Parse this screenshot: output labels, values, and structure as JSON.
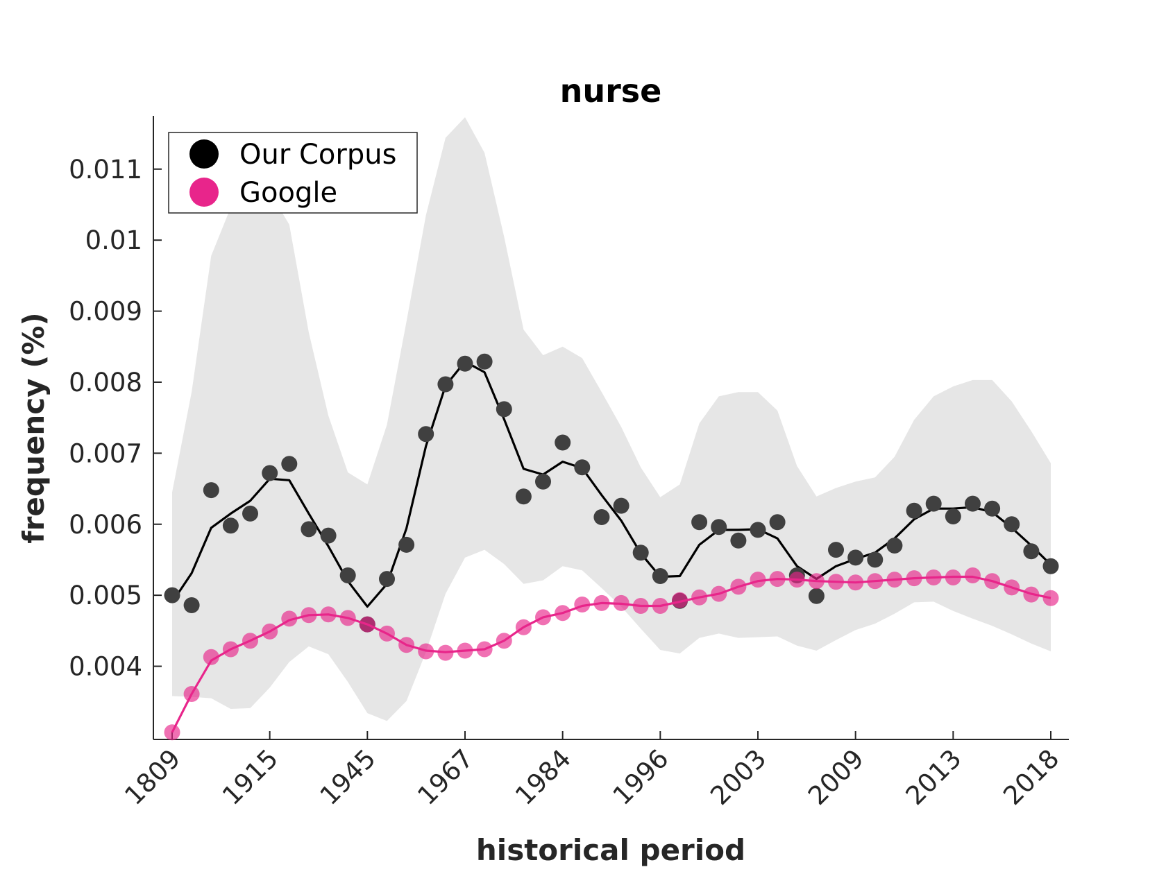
{
  "chart_data": {
    "type": "line",
    "title": "nurse",
    "xlabel": "historical period",
    "ylabel": "frequency (%)",
    "ylim": [
      0.00297,
      0.01175
    ],
    "yticks": [
      0.004,
      0.005,
      0.006,
      0.007,
      0.008,
      0.009,
      0.01,
      0.011
    ],
    "ytick_labels": [
      "0.004",
      "0.005",
      "0.006",
      "0.007",
      "0.008",
      "0.009",
      "0.01",
      "0.011"
    ],
    "xtick_labels": [
      "1809",
      "1915",
      "1945",
      "1967",
      "1984",
      "1996",
      "2003",
      "2009",
      "2013",
      "2018"
    ],
    "xtick_positions": [
      0,
      5,
      10,
      15,
      20,
      25,
      30,
      35,
      40,
      45
    ],
    "grid": false,
    "legend_position": "top-left",
    "series": [
      {
        "name": "Our Corpus",
        "color": "#000000",
        "marker_color": "#404040",
        "points": [
          0.005,
          0.00486,
          0.00648,
          0.00598,
          0.00615,
          0.00672,
          0.00685,
          0.00593,
          0.00584,
          0.00528,
          0.00459,
          0.00523,
          0.00571,
          0.00727,
          0.00797,
          0.00826,
          0.00829,
          0.00762,
          0.00639,
          0.0066,
          0.00715,
          0.0068,
          0.0061,
          0.00626,
          0.0056,
          0.00527,
          0.00492,
          0.00603,
          0.00596,
          0.00577,
          0.00592,
          0.00603,
          0.00528,
          0.00499,
          0.00564,
          0.00553,
          0.0055,
          0.0057,
          0.00619,
          0.00629,
          0.00611,
          0.00629,
          0.00622,
          0.006,
          0.00562,
          0.00541
        ],
        "smoothed": [
          0.0049,
          0.00531,
          0.00595,
          0.00615,
          0.00633,
          0.00664,
          0.00662,
          0.00615,
          0.00569,
          0.0052,
          0.00484,
          0.00516,
          0.00594,
          0.0071,
          0.00795,
          0.00829,
          0.00814,
          0.00748,
          0.00678,
          0.0067,
          0.00688,
          0.00679,
          0.00641,
          0.00605,
          0.00559,
          0.00526,
          0.00527,
          0.00571,
          0.00592,
          0.00592,
          0.00593,
          0.0058,
          0.00541,
          0.00523,
          0.00541,
          0.00551,
          0.0056,
          0.0058,
          0.00607,
          0.00622,
          0.00622,
          0.00624,
          0.00617,
          0.00595,
          0.0057,
          0.00543
        ],
        "band_upper": [
          0.00645,
          0.00786,
          0.00978,
          0.01046,
          0.01092,
          0.01068,
          0.01022,
          0.0087,
          0.00753,
          0.00673,
          0.00656,
          0.0074,
          0.00885,
          0.01035,
          0.01144,
          0.01173,
          0.01123,
          0.01005,
          0.00874,
          0.00838,
          0.0085,
          0.00834,
          0.00786,
          0.00737,
          0.0068,
          0.00638,
          0.00656,
          0.00742,
          0.0078,
          0.00786,
          0.00786,
          0.0076,
          0.00682,
          0.00639,
          0.00651,
          0.0066,
          0.00666,
          0.00695,
          0.00747,
          0.0078,
          0.00794,
          0.00803,
          0.00803,
          0.00773,
          0.00731,
          0.00686
        ],
        "band_lower": [
          0.00358,
          0.00357,
          0.00355,
          0.0034,
          0.00341,
          0.0037,
          0.00406,
          0.00428,
          0.00417,
          0.00378,
          0.00334,
          0.00323,
          0.00351,
          0.0042,
          0.00502,
          0.00553,
          0.00564,
          0.00544,
          0.00516,
          0.00521,
          0.00541,
          0.00535,
          0.0051,
          0.00484,
          0.00453,
          0.00423,
          0.00418,
          0.0044,
          0.00446,
          0.0044,
          0.00441,
          0.00442,
          0.00429,
          0.00422,
          0.00437,
          0.00451,
          0.0046,
          0.00474,
          0.0049,
          0.00491,
          0.00478,
          0.00467,
          0.00457,
          0.00445,
          0.00432,
          0.00421
        ]
      },
      {
        "name": "Google",
        "color": "#e8258b",
        "marker_color": "#e8258b",
        "points": [
          0.00307,
          0.00361,
          0.00413,
          0.00424,
          0.00436,
          0.00449,
          0.00467,
          0.00472,
          0.00473,
          0.00468,
          0.00459,
          0.00446,
          0.0043,
          0.00421,
          0.00419,
          0.00422,
          0.00424,
          0.00436,
          0.00455,
          0.00469,
          0.00475,
          0.00487,
          0.00489,
          0.00489,
          0.00485,
          0.00485,
          0.00493,
          0.00497,
          0.00502,
          0.00512,
          0.00522,
          0.00523,
          0.00522,
          0.0052,
          0.00519,
          0.00518,
          0.0052,
          0.00522,
          0.00524,
          0.00525,
          0.00525,
          0.00528,
          0.0052,
          0.00511,
          0.00501,
          0.00496
        ],
        "smoothed": [
          0.00307,
          0.00361,
          0.00408,
          0.00424,
          0.00436,
          0.00449,
          0.00465,
          0.00472,
          0.00473,
          0.00468,
          0.00459,
          0.00446,
          0.0043,
          0.00422,
          0.0042,
          0.00422,
          0.00424,
          0.00436,
          0.00455,
          0.00469,
          0.00475,
          0.00485,
          0.00489,
          0.00488,
          0.00485,
          0.00485,
          0.00491,
          0.00497,
          0.00502,
          0.00512,
          0.0052,
          0.00523,
          0.00522,
          0.0052,
          0.00519,
          0.00518,
          0.0052,
          0.00522,
          0.00524,
          0.00525,
          0.00526,
          0.00526,
          0.0052,
          0.00511,
          0.00502,
          0.00496
        ]
      }
    ]
  }
}
